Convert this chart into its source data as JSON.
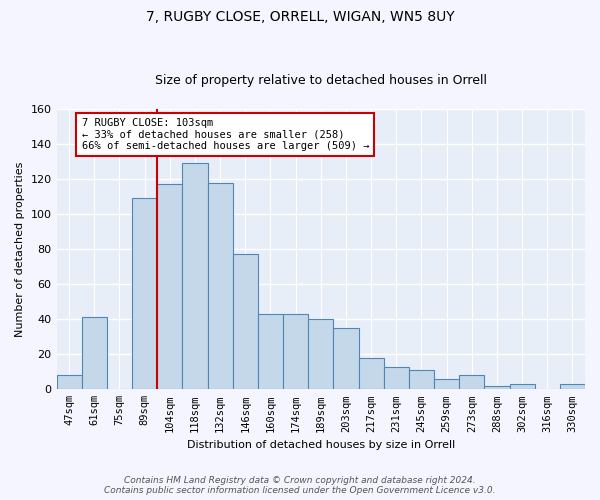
{
  "title1": "7, RUGBY CLOSE, ORRELL, WIGAN, WN5 8UY",
  "title2": "Size of property relative to detached houses in Orrell",
  "xlabel": "Distribution of detached houses by size in Orrell",
  "ylabel": "Number of detached properties",
  "categories": [
    "47sqm",
    "61sqm",
    "75sqm",
    "89sqm",
    "104sqm",
    "118sqm",
    "132sqm",
    "146sqm",
    "160sqm",
    "174sqm",
    "189sqm",
    "203sqm",
    "217sqm",
    "231sqm",
    "245sqm",
    "259sqm",
    "273sqm",
    "288sqm",
    "302sqm",
    "316sqm",
    "330sqm"
  ],
  "heights": [
    8,
    41,
    0,
    109,
    117,
    129,
    118,
    77,
    43,
    43,
    40,
    35,
    18,
    13,
    11,
    6,
    8,
    2,
    3,
    0,
    3
  ],
  "property_line_x": 4.0,
  "annotation_text": "7 RUGBY CLOSE: 103sqm\n← 33% of detached houses are smaller (258)\n66% of semi-detached houses are larger (509) →",
  "bar_color": "#c5d8ea",
  "bar_edge_color": "#4f86b8",
  "line_color": "#cc0000",
  "annotation_box_color": "#ffffff",
  "annotation_box_edge": "#cc0000",
  "plot_bg_color": "#e8eef8",
  "fig_bg_color": "#f5f5ff",
  "footer": "Contains HM Land Registry data © Crown copyright and database right 2024.\nContains public sector information licensed under the Open Government Licence v3.0.",
  "ylim": [
    0,
    160
  ],
  "yticks": [
    0,
    20,
    40,
    60,
    80,
    100,
    120,
    140,
    160
  ],
  "title1_fontsize": 10,
  "title2_fontsize": 9,
  "ylabel_fontsize": 8,
  "xlabel_fontsize": 8
}
